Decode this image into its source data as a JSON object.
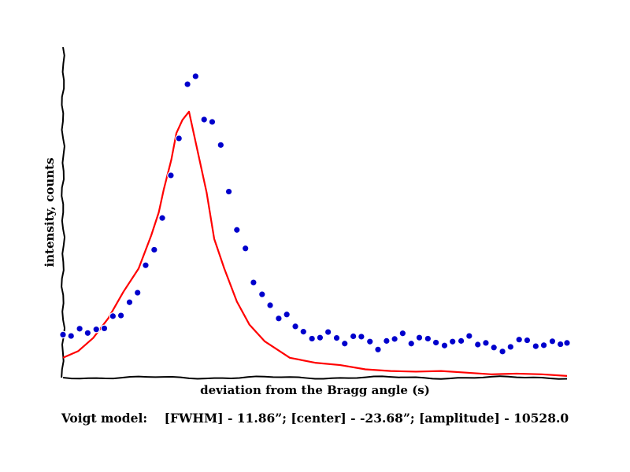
{
  "chart_data": {
    "type": "scatter",
    "title": "",
    "xlabel": "deviation from the Bragg angle (s)",
    "ylabel": "intensity, counts",
    "xlim": [
      0,
      1
    ],
    "ylim": [
      0,
      1
    ],
    "grid": false,
    "legend": "none",
    "colors": {
      "points": "#0000cc",
      "curve": "#ff0000",
      "axes": "#000000"
    },
    "series": [
      {
        "kind": "points",
        "x": [
          0.0,
          0.016,
          0.033,
          0.049,
          0.066,
          0.082,
          0.099,
          0.115,
          0.132,
          0.148,
          0.164,
          0.181,
          0.197,
          0.214,
          0.23,
          0.247,
          0.263,
          0.28,
          0.296,
          0.313,
          0.329,
          0.345,
          0.362,
          0.378,
          0.395,
          0.411,
          0.428,
          0.444,
          0.461,
          0.477,
          0.494,
          0.51,
          0.526,
          0.543,
          0.559,
          0.576,
          0.592,
          0.609,
          0.625,
          0.642,
          0.658,
          0.674,
          0.691,
          0.707,
          0.724,
          0.74,
          0.757,
          0.773,
          0.79,
          0.806,
          0.823,
          0.839,
          0.855,
          0.872,
          0.888,
          0.905,
          0.921,
          0.938,
          0.954,
          0.971,
          0.987,
          1.0
        ],
        "y": [
          0.13,
          0.126,
          0.148,
          0.135,
          0.146,
          0.149,
          0.186,
          0.188,
          0.228,
          0.257,
          0.34,
          0.387,
          0.483,
          0.612,
          0.724,
          0.888,
          0.912,
          0.781,
          0.774,
          0.704,
          0.563,
          0.447,
          0.391,
          0.288,
          0.252,
          0.219,
          0.179,
          0.191,
          0.155,
          0.139,
          0.118,
          0.121,
          0.138,
          0.12,
          0.103,
          0.125,
          0.124,
          0.109,
          0.085,
          0.111,
          0.117,
          0.134,
          0.103,
          0.121,
          0.118,
          0.106,
          0.097,
          0.109,
          0.111,
          0.126,
          0.1,
          0.105,
          0.091,
          0.079,
          0.093,
          0.115,
          0.113,
          0.095,
          0.098,
          0.11,
          0.101,
          0.105
        ]
      },
      {
        "kind": "curve",
        "name": "Voigt model",
        "x": [
          0.0,
          0.03,
          0.06,
          0.09,
          0.12,
          0.15,
          0.175,
          0.19,
          0.2,
          0.215,
          0.225,
          0.237,
          0.25,
          0.265,
          0.285,
          0.3,
          0.32,
          0.345,
          0.37,
          0.4,
          0.45,
          0.5,
          0.55,
          0.6,
          0.65,
          0.7,
          0.75,
          0.8,
          0.85,
          0.9,
          0.95,
          1.0
        ],
        "y": [
          0.06,
          0.08,
          0.12,
          0.18,
          0.26,
          0.33,
          0.43,
          0.5,
          0.57,
          0.66,
          0.74,
          0.78,
          0.805,
          0.7,
          0.56,
          0.42,
          0.33,
          0.23,
          0.16,
          0.11,
          0.06,
          0.045,
          0.038,
          0.025,
          0.02,
          0.018,
          0.02,
          0.015,
          0.01,
          0.012,
          0.01,
          0.005
        ]
      }
    ],
    "annotation": "Voigt model:    [FWHM] - 11.86”; [center] - -23.68”; [amplitude] - 10528.0"
  }
}
